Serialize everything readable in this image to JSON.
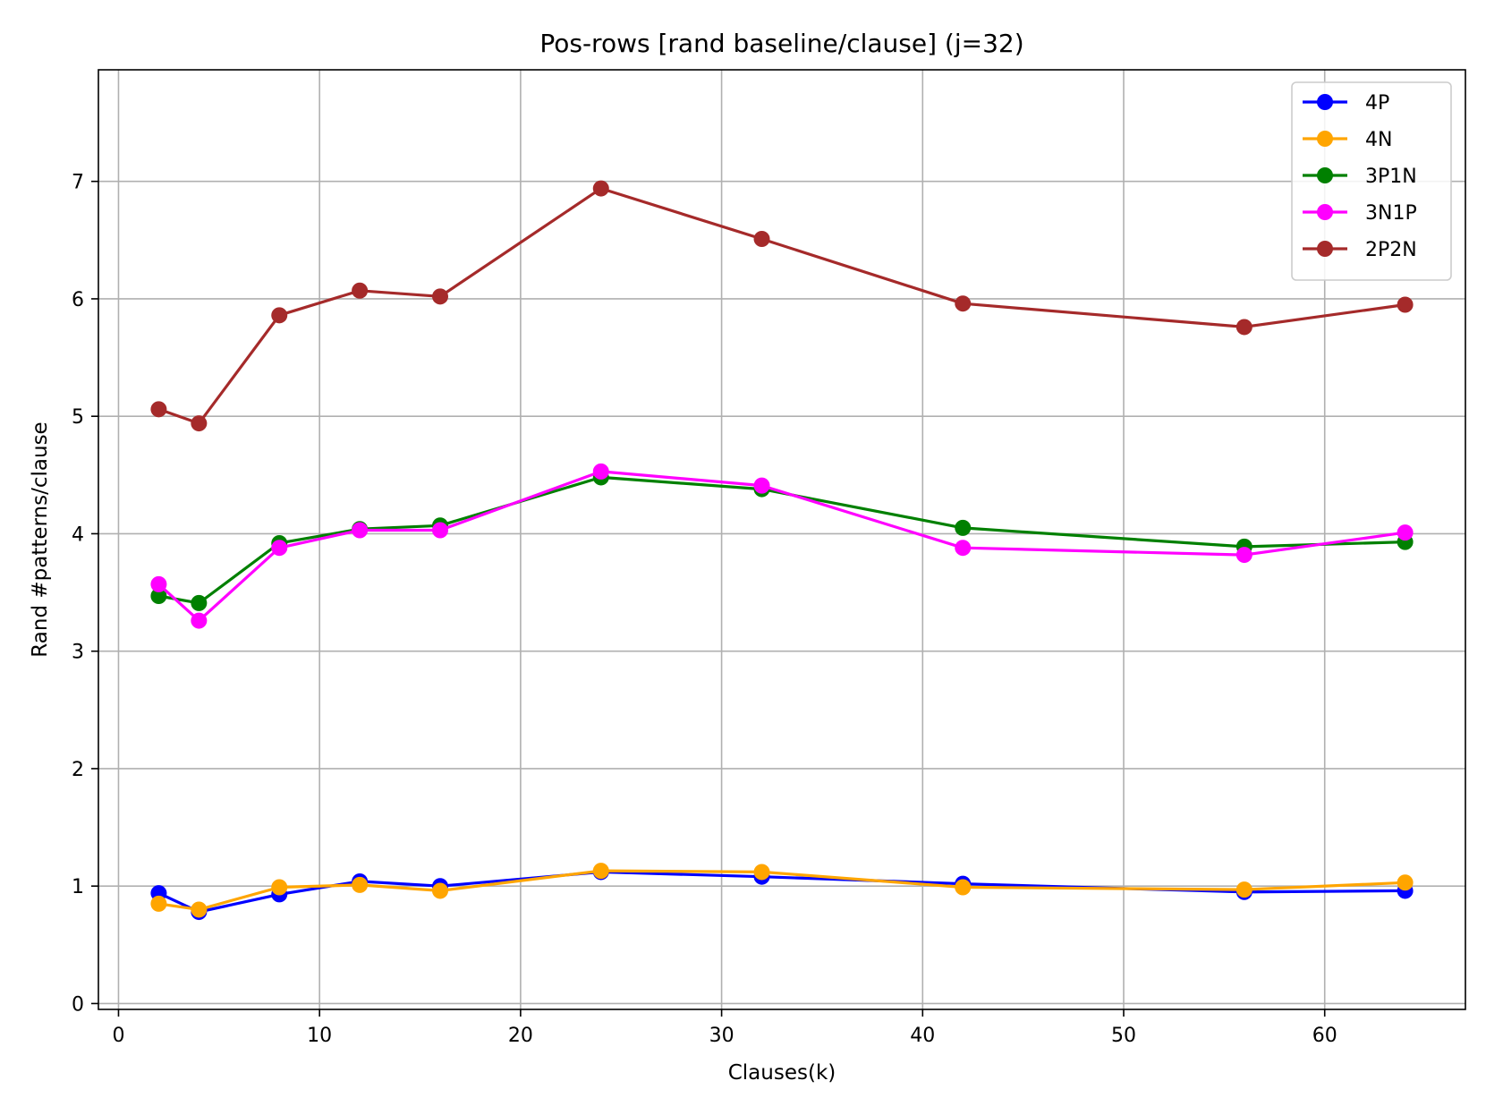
{
  "chart_data": {
    "type": "line",
    "title": "Pos-rows [rand baseline/clause] (j=32)",
    "xlabel": "Clauses(k)",
    "ylabel": "Rand #patterns/clause",
    "xlim": [
      -1,
      67
    ],
    "ylim": [
      -0.05,
      7.95
    ],
    "xticks": [
      0,
      10,
      20,
      30,
      40,
      50,
      60
    ],
    "yticks": [
      0,
      1,
      2,
      3,
      4,
      5,
      6,
      7
    ],
    "grid": true,
    "legend_position": "top-right",
    "x": [
      2,
      4,
      8,
      12,
      16,
      24,
      32,
      42,
      56,
      64
    ],
    "series": [
      {
        "name": "4P",
        "color": "#0000ff",
        "values": [
          0.94,
          0.78,
          0.93,
          1.04,
          1.0,
          1.12,
          1.08,
          1.02,
          0.95,
          0.96
        ]
      },
      {
        "name": "4N",
        "color": "#ffa500",
        "values": [
          0.85,
          0.8,
          0.99,
          1.01,
          0.96,
          1.13,
          1.12,
          0.99,
          0.97,
          1.03
        ]
      },
      {
        "name": "3P1N",
        "color": "#008000",
        "values": [
          3.47,
          3.41,
          3.92,
          4.04,
          4.07,
          4.48,
          4.38,
          4.05,
          3.89,
          3.93
        ]
      },
      {
        "name": "3N1P",
        "color": "#ff00ff",
        "values": [
          3.57,
          3.26,
          3.88,
          4.03,
          4.03,
          4.53,
          4.41,
          3.88,
          3.82,
          4.01
        ]
      },
      {
        "name": "2P2N",
        "color": "#a52a2a",
        "values": [
          5.06,
          4.94,
          5.86,
          6.07,
          6.02,
          6.94,
          6.51,
          5.96,
          5.76,
          5.95
        ]
      }
    ]
  }
}
